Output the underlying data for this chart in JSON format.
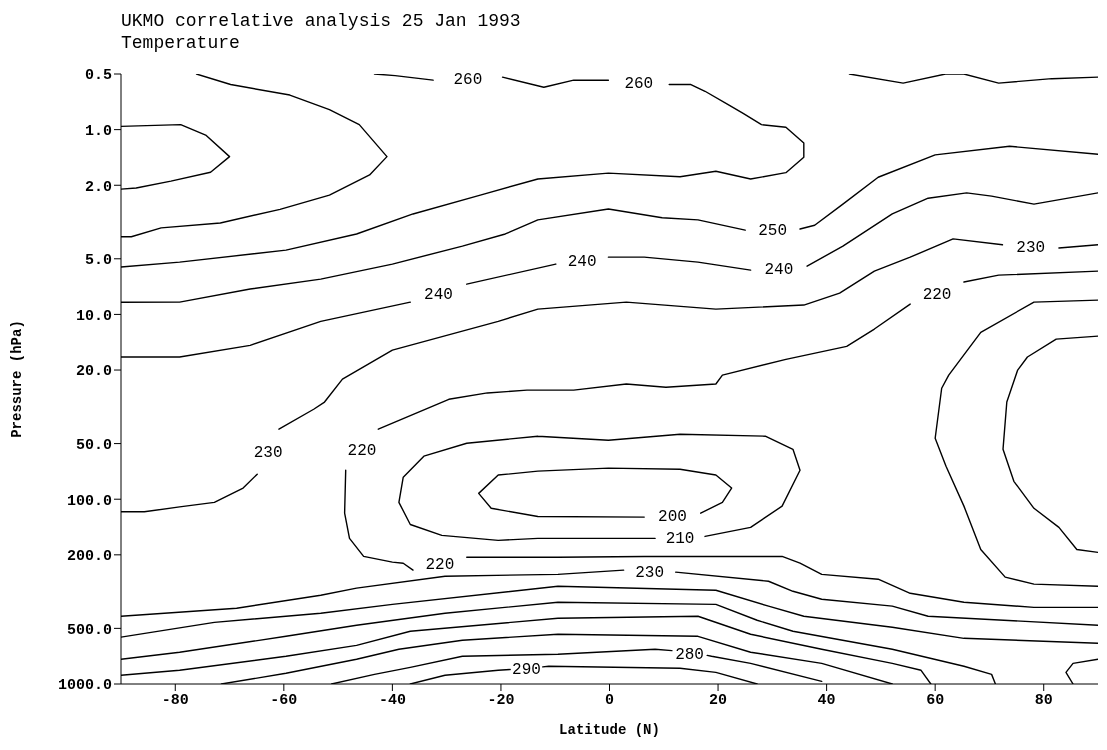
{
  "chart_data": {
    "type": "line",
    "title": "UKMO correlative analysis 25 Jan 1993",
    "subtitle": "Temperature",
    "xlabel": "Latitude (N)",
    "ylabel": "Pressure (hPa)",
    "xlim": [
      -90,
      90
    ],
    "xticks": [
      -80,
      -60,
      -40,
      -20,
      0,
      20,
      40,
      60,
      80
    ],
    "ylim": [
      1000,
      0.5
    ],
    "log": true,
    "yticks": [
      {
        "value": 0.5,
        "label": "0.5"
      },
      {
        "value": 1,
        "label": "1.0"
      },
      {
        "value": 2,
        "label": "2.0"
      },
      {
        "value": 5,
        "label": "5.0"
      },
      {
        "value": 10,
        "label": "10.0"
      },
      {
        "value": 20,
        "label": "20.0"
      },
      {
        "value": 50,
        "label": "50.0"
      },
      {
        "value": 100,
        "label": "100.0"
      },
      {
        "value": 200,
        "label": "200.0"
      },
      {
        "value": 500,
        "label": "500.0"
      },
      {
        "value": 1000,
        "label": "1000.0"
      }
    ],
    "series": [
      {
        "color": "#000000",
        "x": [
          -76.1,
          -69.8,
          -58.9,
          -51.6,
          -46.1,
          -41.0,
          -44.2,
          -51.6,
          -60.7,
          -71.7,
          -82.6,
          -88.1,
          -90
        ],
        "values": [
          0.5,
          0.57,
          0.65,
          0.78,
          0.94,
          1.4,
          1.76,
          2.26,
          2.7,
          3.2,
          3.4,
          3.8,
          3.8
        ]
      },
      {
        "color": "#000000",
        "x": [
          -90,
          -79.0,
          -74.4,
          -70.0,
          -73.5,
          -80.8,
          -87.2,
          -90
        ],
        "values": [
          0.96,
          0.94,
          1.07,
          1.4,
          1.7,
          1.9,
          2.07,
          2.1
        ]
      },
      {
        "name": "260",
        "color": "#000000",
        "x": [
          -43.3,
          -39.5,
          -32.5,
          -26,
          -19.7,
          -12.1,
          -6.6,
          -0.2,
          3.5,
          11.0,
          15.0,
          17.6,
          22.1,
          24.7,
          28.0,
          32.5,
          35.8,
          35.8,
          32.5,
          26.0,
          19.6,
          13.0,
          -0.2,
          -13.2,
          -23.8,
          -36.2,
          -46.6,
          -59.6,
          -79.2,
          -90
        ],
        "values": [
          0.5,
          0.51,
          0.54,
          null,
          0.52,
          0.59,
          0.54,
          0.54,
          null,
          0.57,
          0.57,
          0.62,
          0.74,
          0.82,
          0.94,
          0.97,
          1.18,
          1.41,
          1.71,
          1.85,
          1.68,
          1.8,
          1.72,
          1.85,
          2.26,
          2.86,
          3.67,
          4.49,
          5.21,
          5.54
        ]
      },
      {
        "color": "#000000",
        "x": [
          44.2,
          54.1,
          61.9,
          65.3,
          71.7,
          81.5,
          90
        ],
        "values": [
          0.5,
          0.56,
          0.5,
          0.5,
          0.56,
          0.53,
          0.52
        ]
      },
      {
        "name": "250",
        "color": "#000000",
        "x": [
          90,
          73.7,
          60.0,
          49.5,
          43.0,
          37.8,
          35.1,
          30,
          25.0,
          16.3,
          9.7,
          -0.2,
          -13.2,
          -19.2,
          -27.1,
          -40.0,
          -53.2,
          -66.2,
          -79.2,
          -90
        ],
        "values": [
          1.36,
          1.23,
          1.37,
          1.81,
          2.53,
          3.29,
          3.45,
          null,
          3.5,
          3.08,
          3.0,
          2.69,
          3.08,
          3.67,
          4.27,
          5.34,
          6.44,
          7.29,
          8.58,
          8.6
        ]
      },
      {
        "name": "240",
        "color": "#000000",
        "x": [
          90,
          78.2,
          70.4,
          65.8,
          58.7,
          52.1,
          43.0,
          36.4,
          31,
          26.0,
          16.3,
          6.4,
          -0.2,
          -3.3,
          -9.9,
          -26.3,
          -30.9,
          -36.7,
          -53.2,
          -66.2,
          -79.2,
          -90
        ],
        "values": [
          2.2,
          2.53,
          2.29,
          2.2,
          2.35,
          2.86,
          4.27,
          5.48,
          null,
          5.76,
          5.21,
          4.9,
          4.9,
          null,
          5.34,
          6.86,
          null,
          8.58,
          10.9,
          14.7,
          17.0,
          17.0
        ]
      },
      {
        "name": "230",
        "color": "#000000",
        "x": [
          90,
          82.8,
          79.5,
          72.4,
          63.3,
          55.4,
          48.8,
          42.4,
          35.8,
          19.6,
          3.1,
          -13.2,
          -20.5,
          -40.0,
          -49.2,
          -52.5,
          -54.5,
          -60.9,
          -63.3,
          -64.9,
          -67.5,
          -72.8,
          -79.2,
          -85.7,
          -90
        ],
        "values": [
          4.2,
          4.37,
          null,
          4.2,
          3.9,
          4.9,
          5.83,
          7.67,
          8.9,
          9.36,
          8.58,
          9.36,
          10.9,
          15.6,
          22.4,
          29.8,
          32.6,
          41.8,
          null,
          73.2,
          87,
          104,
          110,
          117,
          117
        ]
      },
      {
        "name": "220",
        "color": "#000000",
        "x": [
          90,
          71.7,
          65.3,
          61,
          55.4,
          48.8,
          43.7,
          32.5,
          20.8,
          19.6,
          10.4,
          3.1,
          -6.6,
          -15.2,
          -22.5,
          -29.6,
          -42.6,
          -45.9,
          -48.6,
          -48.8,
          -47.9,
          -45.3,
          -40.0,
          -38.0,
          -36.2,
          -29.6,
          -26.3,
          -9.5,
          6.4,
          31.8,
          35.1,
          39.1,
          49.5,
          55.4,
          65.3,
          78.2,
          90
        ],
        "values": [
          5.83,
          6.13,
          6.68,
          null,
          8.79,
          12.0,
          14.9,
          17.5,
          21.3,
          23.8,
          24.8,
          23.8,
          25.7,
          25.7,
          26.6,
          28.8,
          41.8,
          null,
          69.7,
          119,
          163,
          204,
          219,
          222,
          242,
          null,
          206,
          206,
          204,
          204,
          222,
          255,
          271,
          323,
          361,
          385,
          385
        ]
      },
      {
        "name": "210",
        "color": "#000000",
        "x": [
          -13.2,
          -26.3,
          -34.2,
          -38.0,
          -38.8,
          -36.7,
          -30.9,
          -20.5,
          -13.2,
          8.4,
          15,
          17.6,
          26.0,
          31.8,
          35.1,
          33.8,
          28.7,
          13.0,
          -0.2,
          -13.2
        ],
        "values": [
          45.6,
          49.8,
          58.5,
          76,
          104,
          137,
          157,
          167,
          163,
          163,
          null,
          159,
          142,
          109,
          69.7,
          53.7,
          45.6,
          44.5,
          48,
          45.6
        ]
      },
      {
        "name": "200",
        "color": "#000000",
        "x": [
          -13.2,
          -20.5,
          -24.1,
          -21.8,
          -13.2,
          6.4,
          13.5,
          16.8,
          20.8,
          22.5,
          19.6,
          13.0,
          -0.2,
          -13.2
        ],
        "values": [
          70.5,
          74,
          93,
          112,
          124,
          125,
          null,
          119,
          104,
          87,
          74,
          68.8,
          67.9,
          70.5
        ]
      },
      {
        "color": "#000000",
        "x": [
          90,
          78.2,
          68.4,
          62.5,
          61.2,
          60.0,
          62.0,
          65.3,
          68.4,
          72.9,
          78.2,
          90
        ],
        "values": [
          8.37,
          8.58,
          12.5,
          21.3,
          25.1,
          46.8,
          66.3,
          109,
          187,
          264,
          288,
          296
        ]
      },
      {
        "color": "#000000",
        "x": [
          90,
          82.3,
          77.0,
          75.2,
          73.2,
          72.5,
          74.5,
          78.2,
          82.8,
          86.1,
          90
        ],
        "values": [
          13.1,
          13.6,
          17.0,
          20.0,
          29.8,
          53.7,
          80,
          112,
          142,
          187,
          194
        ]
      },
      {
        "name": "230",
        "color": "#000000",
        "x": [
          -90,
          -68.7,
          -53.2,
          -46.6,
          -30.3,
          -9.5,
          2.6,
          9,
          12.2,
          29.3,
          33.8,
          39.1,
          52.1,
          58.7,
          90
        ],
        "values": [
          430,
          389,
          331,
          303,
          261,
          255,
          242,
          null,
          248,
          278,
          315,
          348,
          379,
          430,
          481
        ]
      },
      {
        "color": "#000000",
        "x": [
          -90,
          -72.8,
          -53.2,
          -40.0,
          -9.5,
          19.6,
          29.3,
          35.8,
          52.1,
          65.3,
          90
        ],
        "values": [
          558,
          464,
          414,
          371,
          296,
          311,
          379,
          430,
          493,
          566,
          602
        ]
      },
      {
        "color": "#000000",
        "x": [
          -90,
          -79.2,
          -59.6,
          -46.6,
          -30.3,
          -9.5,
          19.6,
          27.2,
          33.8,
          52.1,
          65.3,
          70.4,
          71.1
        ],
        "values": [
          735,
          673,
          552,
          481,
          414,
          361,
          371,
          452,
          518,
          649,
          802,
          887,
          1000
        ]
      },
      {
        "color": "#000000",
        "x": [
          -90,
          -79.2,
          -59.6,
          -46.6,
          -36.7,
          -9.5,
          16.3,
          26.0,
          39.1,
          52.1,
          57.4,
          59.2
        ],
        "values": [
          897,
          843,
          708,
          618,
          518,
          441,
          430,
          538,
          649,
          773,
          843,
          1000
        ]
      },
      {
        "color": "#000000",
        "x": [
          -71.5,
          -59.6,
          -46.6,
          -38.8,
          -27.1,
          -9.5,
          16.3,
          26.0,
          39.1,
          52.1
        ],
        "values": [
          1000,
          875,
          735,
          649,
          580,
          538,
          552,
          673,
          773,
          1000
        ]
      },
      {
        "name": "280",
        "color": "#000000",
        "x": [
          -51.2,
          -43.3,
          -36.7,
          -27.1,
          -9.5,
          8.4,
          11.5,
          15.5,
          18.0,
          18.8,
          26.0,
          39.1
        ],
        "values": [
          1000,
          887,
          813,
          708,
          690,
          649,
          660,
          null,
          700,
          708,
          773,
          967
        ]
      },
      {
        "name": "290",
        "color": "#000000",
        "x": [
          -36.7,
          -30.3,
          -20.5,
          -18.3,
          -14.4,
          -12.3,
          -11.2,
          13.0,
          19.6,
          27.2
        ],
        "values": [
          1000,
          897,
          843,
          835,
          null,
          808,
          802,
          822,
          865,
          1000
        ]
      },
      {
        "color": "#000000",
        "x": [
          90,
          85.4,
          84.1,
          85.4
        ],
        "values": [
          735,
          773,
          865,
          1000
        ]
      }
    ]
  }
}
